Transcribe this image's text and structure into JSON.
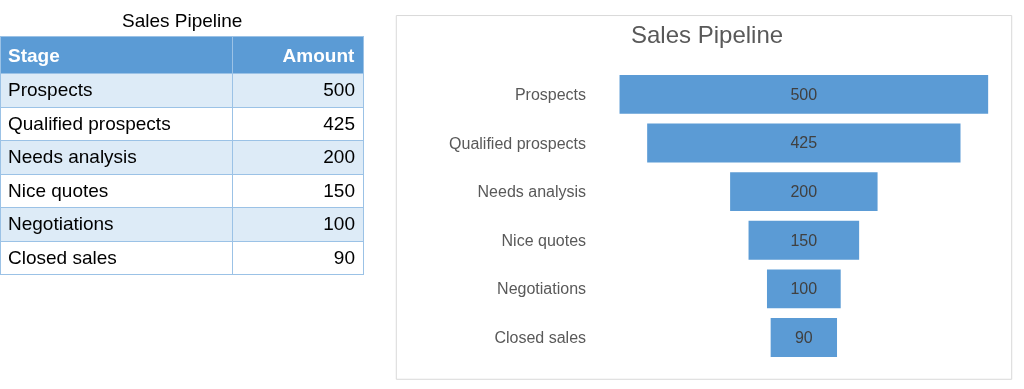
{
  "chart_data": [
    {
      "type": "other",
      "title": "Sales Pipeline",
      "annotations": [
        "Stage",
        "Amount"
      ],
      "categories": [
        "Prospects",
        "Qualified prospects",
        "Needs analysis",
        "Nice quotes",
        "Negotiations",
        "Closed sales"
      ],
      "values": [
        500,
        425,
        200,
        150,
        100,
        90
      ],
      "data_labels": true
    },
    {
      "type": "other",
      "title": "Sales Pipeline",
      "categories": [
        "Prospects",
        "Qualified prospects",
        "Needs analysis",
        "Nice quotes",
        "Negotiations",
        "Closed sales"
      ],
      "values": [
        500,
        425,
        200,
        150,
        100,
        90
      ],
      "color": "#5b9bd5",
      "data_labels": true
    }
  ]
}
